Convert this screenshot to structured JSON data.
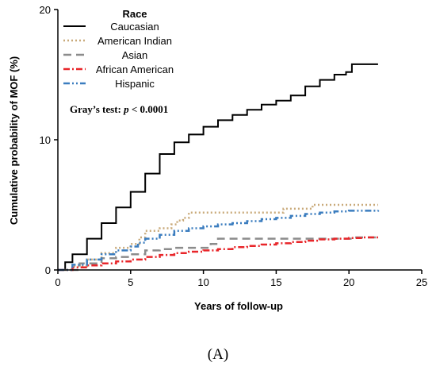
{
  "chart_data": {
    "type": "line",
    "title": "",
    "xlabel": "Years of follow-up",
    "ylabel": "Cumulative probability of MOF (%)",
    "xlim": [
      0,
      25
    ],
    "ylim": [
      0,
      20
    ],
    "xticks": [
      "0",
      "5",
      "10",
      "15",
      "20",
      "25"
    ],
    "yticks": [
      "0",
      "10",
      "20"
    ],
    "grid": false,
    "legend": {
      "title": "Race",
      "position": "top-left"
    },
    "annotation": {
      "prefix": "Gray’s test: ",
      "p": "p",
      "rest": " < 0.0001"
    },
    "caption": "(A)",
    "series": [
      {
        "name": "Caucasian",
        "color": "#000000",
        "style": "solid",
        "points": [
          [
            0,
            0
          ],
          [
            0.5,
            0.6
          ],
          [
            1,
            1.2
          ],
          [
            2,
            2.4
          ],
          [
            3,
            3.6
          ],
          [
            4,
            4.8
          ],
          [
            5,
            6.0
          ],
          [
            6,
            7.4
          ],
          [
            7,
            8.9
          ],
          [
            8,
            9.8
          ],
          [
            9,
            10.4
          ],
          [
            10,
            11.0
          ],
          [
            11,
            11.5
          ],
          [
            12,
            11.9
          ],
          [
            13,
            12.3
          ],
          [
            14,
            12.7
          ],
          [
            15,
            13.0
          ],
          [
            16,
            13.4
          ],
          [
            17,
            14.1
          ],
          [
            18,
            14.6
          ],
          [
            19,
            15.0
          ],
          [
            19.8,
            15.2
          ],
          [
            20.2,
            15.8
          ],
          [
            22,
            15.8
          ]
        ]
      },
      {
        "name": "American Indian",
        "color": "#c9aa7a",
        "style": "dotted",
        "points": [
          [
            0,
            0
          ],
          [
            1,
            0.3
          ],
          [
            2,
            0.8
          ],
          [
            3,
            1.3
          ],
          [
            4,
            1.7
          ],
          [
            5,
            2.0
          ],
          [
            5.6,
            2.5
          ],
          [
            6,
            3.0
          ],
          [
            7,
            3.2
          ],
          [
            7.8,
            3.5
          ],
          [
            8.2,
            3.8
          ],
          [
            8.6,
            4.0
          ],
          [
            9,
            4.4
          ],
          [
            12,
            4.4
          ],
          [
            15,
            4.4
          ],
          [
            15.5,
            4.7
          ],
          [
            17,
            4.7
          ],
          [
            17.5,
            5.0
          ],
          [
            22,
            5.0
          ]
        ]
      },
      {
        "name": "Asian",
        "color": "#8c8c8c",
        "style": "dashed",
        "points": [
          [
            0,
            0
          ],
          [
            1.5,
            0.5
          ],
          [
            3,
            0.9
          ],
          [
            4,
            1.0
          ],
          [
            5,
            1.2
          ],
          [
            6,
            1.5
          ],
          [
            7,
            1.6
          ],
          [
            8,
            1.7
          ],
          [
            9.5,
            1.7
          ],
          [
            10.5,
            2.0
          ],
          [
            11,
            2.4
          ],
          [
            16,
            2.4
          ],
          [
            20,
            2.4
          ],
          [
            20.5,
            2.5
          ],
          [
            22,
            2.5
          ]
        ]
      },
      {
        "name": "African American",
        "color": "#e8262a",
        "style": "dashdot",
        "points": [
          [
            0,
            0
          ],
          [
            1,
            0.2
          ],
          [
            2,
            0.35
          ],
          [
            3,
            0.5
          ],
          [
            4,
            0.65
          ],
          [
            5,
            0.8
          ],
          [
            6,
            1.0
          ],
          [
            7,
            1.15
          ],
          [
            8,
            1.3
          ],
          [
            9,
            1.4
          ],
          [
            10,
            1.5
          ],
          [
            11,
            1.6
          ],
          [
            12,
            1.75
          ],
          [
            13,
            1.85
          ],
          [
            14,
            1.95
          ],
          [
            15,
            2.05
          ],
          [
            16,
            2.15
          ],
          [
            17,
            2.25
          ],
          [
            18,
            2.35
          ],
          [
            19,
            2.4
          ],
          [
            20,
            2.45
          ],
          [
            21,
            2.5
          ],
          [
            22,
            2.5
          ]
        ]
      },
      {
        "name": "Hispanic",
        "color": "#3b7dbf",
        "style": "dashdotdot",
        "points": [
          [
            0,
            0
          ],
          [
            1,
            0.4
          ],
          [
            2,
            0.8
          ],
          [
            3,
            1.2
          ],
          [
            4,
            1.5
          ],
          [
            5,
            1.8
          ],
          [
            5.5,
            2.1
          ],
          [
            6,
            2.4
          ],
          [
            7,
            2.7
          ],
          [
            8,
            3.0
          ],
          [
            9,
            3.2
          ],
          [
            10,
            3.35
          ],
          [
            11,
            3.5
          ],
          [
            12,
            3.6
          ],
          [
            13,
            3.75
          ],
          [
            14,
            3.9
          ],
          [
            15,
            4.0
          ],
          [
            16,
            4.15
          ],
          [
            17,
            4.3
          ],
          [
            18,
            4.4
          ],
          [
            19,
            4.5
          ],
          [
            20,
            4.55
          ],
          [
            22,
            4.6
          ]
        ]
      }
    ]
  }
}
